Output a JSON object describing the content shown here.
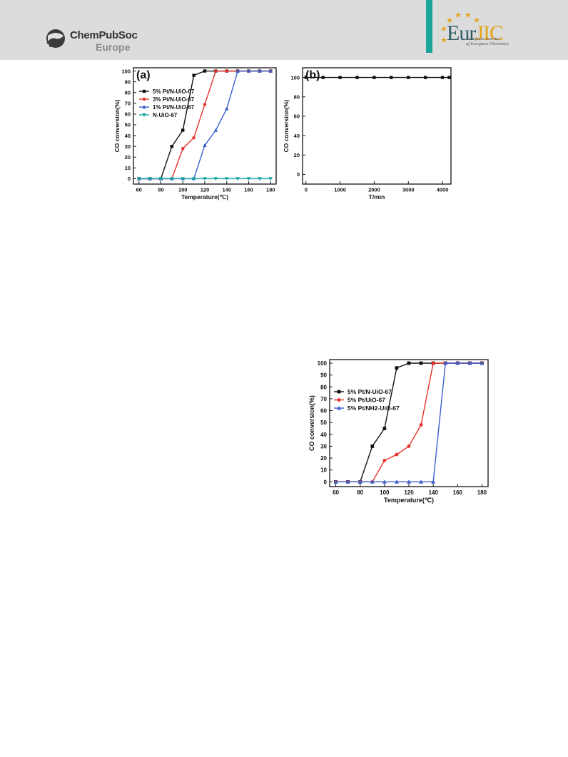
{
  "header": {
    "publisher_name": "ChemPubSoc",
    "publisher_region": "Europe",
    "journal_short_a": "Eur",
    "journal_short_b": "JIC",
    "journal_full_line1": "European Journal",
    "journal_full_line2": "of Inorganic Chemistry"
  },
  "chart_data": [
    {
      "id": "a",
      "type": "line",
      "panel_label": "(a)",
      "xlabel": "Temperature(℃)",
      "ylabel": "CO conversion(%)",
      "xlim": [
        55,
        185
      ],
      "ylim": [
        -5,
        103
      ],
      "xticks": [
        60,
        80,
        100,
        120,
        140,
        160,
        180
      ],
      "yticks": [
        0,
        10,
        20,
        30,
        40,
        50,
        60,
        70,
        80,
        90,
        100
      ],
      "legend_position": "upper-left",
      "x": [
        60,
        70,
        80,
        90,
        100,
        110,
        120,
        130,
        140,
        150,
        160,
        170,
        180
      ],
      "series": [
        {
          "name": "5% Pt/N-UiO-67",
          "color": "#111111",
          "marker": "square",
          "values": [
            0,
            0,
            0,
            30,
            45,
            96,
            100,
            100,
            100,
            100,
            100,
            100,
            100
          ]
        },
        {
          "name": "3% Pt/N-UiO-67",
          "color": "#e8302a",
          "marker": "circle",
          "values": [
            0,
            0,
            0,
            0,
            28,
            38,
            69,
            100,
            100,
            100,
            100,
            100,
            100
          ]
        },
        {
          "name": "1% Pt/N-UiO-67",
          "color": "#3a5fcd",
          "marker": "triangle",
          "values": [
            0,
            0,
            0,
            0,
            0,
            0,
            31,
            45,
            65,
            100,
            100,
            100,
            100
          ]
        },
        {
          "name": "N-UiO-67",
          "color": "#1aa5a0",
          "marker": "triangle-down",
          "values": [
            0,
            0,
            0,
            0,
            0,
            0,
            0,
            0,
            0,
            0,
            0,
            0,
            0
          ]
        }
      ]
    },
    {
      "id": "b",
      "type": "line",
      "panel_label": "(b)",
      "xlabel": "T/min",
      "ylabel": "CO conversion(%)",
      "xlim": [
        -100,
        4250
      ],
      "ylim": [
        -10,
        110
      ],
      "xticks": [
        0,
        1000,
        2000,
        3000,
        4000
      ],
      "yticks": [
        0,
        20,
        40,
        60,
        80,
        100
      ],
      "x": [
        0,
        500,
        1000,
        1500,
        2000,
        2500,
        3000,
        3500,
        4000,
        4200
      ],
      "series": [
        {
          "color": "#111111",
          "marker": "square",
          "values": [
            100,
            100,
            100,
            100,
            100,
            100,
            100,
            100,
            100,
            100
          ]
        }
      ]
    },
    {
      "id": "c",
      "type": "line",
      "xlabel": "Temperature(℃)",
      "ylabel": "CO conversion(%)",
      "xlim": [
        55,
        185
      ],
      "ylim": [
        -4,
        103
      ],
      "xticks": [
        60,
        80,
        100,
        120,
        140,
        160,
        180
      ],
      "yticks": [
        0,
        10,
        20,
        30,
        40,
        50,
        60,
        70,
        80,
        90,
        100
      ],
      "legend_position": "upper-left",
      "x": [
        60,
        70,
        80,
        90,
        100,
        110,
        120,
        130,
        140,
        150,
        160,
        170,
        180
      ],
      "series": [
        {
          "name": "5% Pt/N-UiO-67",
          "color": "#111111",
          "marker": "square",
          "values": [
            0,
            0,
            0,
            30,
            45,
            96,
            100,
            100,
            100,
            100,
            100,
            100,
            100
          ]
        },
        {
          "name": "5% Pt/UiO-67",
          "color": "#e8302a",
          "marker": "circle",
          "values": [
            0,
            0,
            0,
            0,
            18,
            23,
            30,
            48,
            100,
            100,
            100,
            100,
            100
          ]
        },
        {
          "name": "5% Pt/NH2-UiO-67",
          "color": "#3a5fcd",
          "marker": "triangle",
          "values": [
            0,
            0,
            0,
            0,
            0,
            0,
            0,
            0,
            0,
            100,
            100,
            100,
            100
          ]
        }
      ]
    }
  ]
}
